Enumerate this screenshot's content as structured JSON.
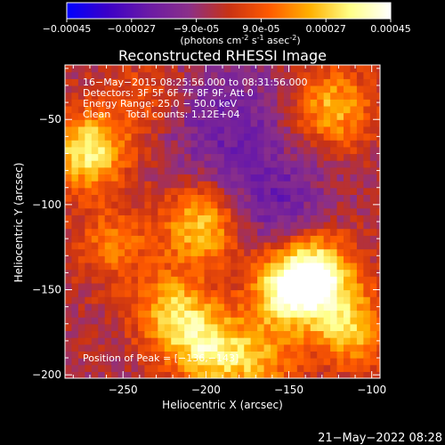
{
  "colorbar": {
    "ticks": [
      "-0.00045",
      "-0.00027",
      "-9.0e-05",
      "9.0e-05",
      "0.00027",
      "0.00045"
    ],
    "units_text": "(photons cm",
    "units_sup1": "-2",
    "units_mid": " s",
    "units_sup2": "-1",
    "units_end": " asec",
    "units_sup3": "-2",
    "units_close": ")",
    "stops": [
      "#0000ff",
      "#3b00c8",
      "#6a1aa6",
      "#8a2f8a",
      "#c83214",
      "#ff5a00",
      "#ffb000",
      "#ffff88",
      "#ffffff"
    ]
  },
  "chart_data": {
    "type": "heatmap",
    "title": "Reconstructed RHESSI Image",
    "xlabel": "Heliocentric X (arcsec)",
    "ylabel": "Heliocentric Y (arcsec)",
    "xlim": [
      -285,
      -95
    ],
    "ylim": [
      -202,
      -18
    ],
    "xticks": [
      -250,
      -200,
      -150,
      -100
    ],
    "xtick_labels": [
      "−250",
      "−200",
      "−150",
      "−100"
    ],
    "yticks": [
      -50,
      -100,
      -150,
      -200
    ],
    "ytick_labels": [
      "−50",
      "−100",
      "−150",
      "−200"
    ],
    "value_range": [
      -0.00045,
      0.00045
    ],
    "annotations": [
      "16−May−2015 08:25:56.000 to 08:31:56.000",
      "Detectors: 3F 5F 6F 7F 8F 9F, Att 0",
      "Energy Range: 25.0 − 50.0 keV",
      "Clean     Total counts: 1.12E+04"
    ],
    "peak_label": "Position of Peak = [−136,−143]",
    "peak": [
      -136,
      -143
    ],
    "sources": [
      {
        "x": -136,
        "y": -143,
        "peak": 0.00045
      },
      {
        "x": -153,
        "y": -153,
        "peak": 0.00036
      },
      {
        "x": -205,
        "y": -115,
        "peak": 0.00032
      },
      {
        "x": -222,
        "y": -165,
        "peak": 0.0003
      },
      {
        "x": -200,
        "y": -187,
        "peak": 0.00034
      },
      {
        "x": -273,
        "y": -70,
        "peak": 0.00038
      },
      {
        "x": -125,
        "y": -45,
        "peak": 0.00028
      },
      {
        "x": -115,
        "y": -175,
        "peak": 0.00029
      },
      {
        "x": -170,
        "y": -195,
        "peak": 0.00022
      },
      {
        "x": -258,
        "y": -125,
        "peak": 0.00018
      },
      {
        "x": -240,
        "y": -40,
        "peak": 0.00012
      }
    ],
    "negative_sources": [
      {
        "x": -160,
        "y": -100,
        "peak": -0.00038
      },
      {
        "x": -200,
        "y": -60,
        "peak": -0.00022
      },
      {
        "x": -180,
        "y": -45,
        "peak": -0.0002
      }
    ]
  },
  "footer": {
    "timestamp": "21−May−2022 08:28"
  }
}
